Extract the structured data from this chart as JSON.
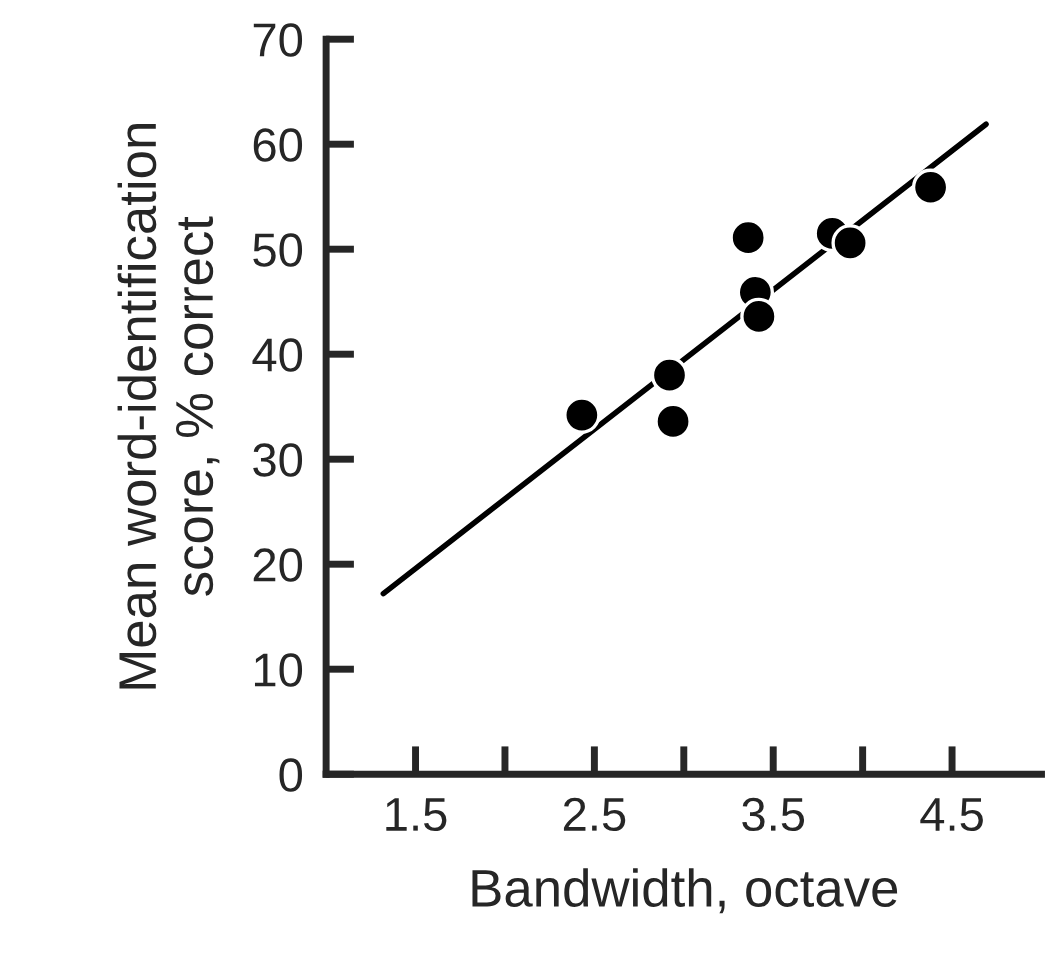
{
  "chart_data": {
    "type": "scatter",
    "xlabel": "Bandwidth, octave",
    "ylabel": "Mean word-identification\nscore, % correct",
    "xlim": [
      1.0,
      5.0
    ],
    "ylim": [
      0,
      70
    ],
    "xticks": [
      1.5,
      {
        "value": 2.0,
        "label": null
      },
      2.5,
      {
        "value": 3.0,
        "label": null
      },
      3.5,
      {
        "value": 4.0,
        "label": null
      },
      4.5
    ],
    "yticks": [
      0,
      10,
      20,
      30,
      40,
      50,
      60,
      70
    ],
    "grid": false,
    "legend": false,
    "series": [
      {
        "color": "#000000",
        "marker": "circle",
        "x": [
          2.43,
          2.92,
          2.94,
          3.36,
          3.4,
          3.42,
          3.83,
          3.93,
          4.38
        ],
        "values": [
          34.2,
          38.0,
          33.6,
          51.1,
          45.9,
          43.6,
          51.5,
          50.6,
          55.9
        ]
      },
      {
        "type": "line",
        "color": "#000000",
        "marker": "none",
        "x": [
          1.32,
          4.69
        ],
        "values": [
          17.2,
          61.9
        ]
      }
    ]
  }
}
